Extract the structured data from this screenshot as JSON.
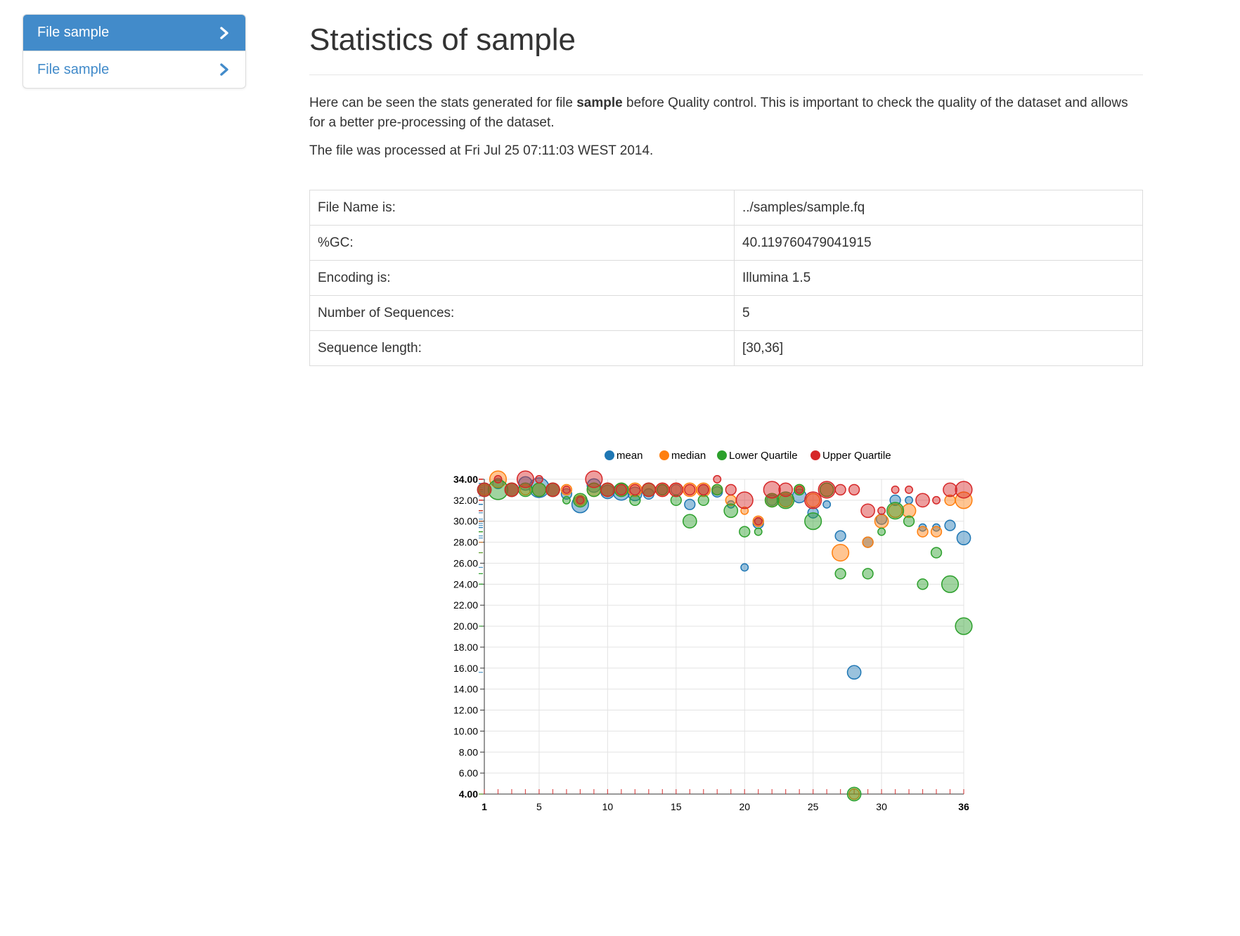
{
  "sidebar": {
    "items": [
      {
        "label": "File sample",
        "active": true
      },
      {
        "label": "File sample",
        "active": false
      }
    ]
  },
  "page": {
    "title": "Statistics of sample",
    "intro_before": "Here can be seen the stats generated for file ",
    "intro_bold": "sample",
    "intro_after": " before Quality control. This is important to check the quality of the dataset and allows for a better pre-processing of the dataset.",
    "processed": "The file was processed at Fri Jul 25 07:11:03 WEST 2014."
  },
  "stats_table": {
    "rows": [
      {
        "key": "File Name is:",
        "value": "../samples/sample.fq"
      },
      {
        "key": "%GC:",
        "value": "40.119760479041915"
      },
      {
        "key": "Encoding is:",
        "value": "Illumina 1.5"
      },
      {
        "key": "Number of Sequences:",
        "value": "5"
      },
      {
        "key": "Sequence length:",
        "value": "[30,36]"
      }
    ]
  },
  "colors": {
    "accent": "#428bca",
    "mean": "#1f77b4",
    "median": "#ff7f0e",
    "lower": "#2ca02c",
    "upper": "#d62728"
  },
  "chart_data": {
    "type": "scatter",
    "title": "",
    "xlabel": "",
    "ylabel": "",
    "xlim": [
      1,
      36
    ],
    "ylim": [
      4,
      34
    ],
    "x_ticks": [
      "1",
      "5",
      "10",
      "15",
      "20",
      "25",
      "30",
      "36"
    ],
    "y_ticks": [
      "4.00",
      "6.00",
      "8.00",
      "10.00",
      "12.00",
      "14.00",
      "16.00",
      "18.00",
      "20.00",
      "22.00",
      "24.00",
      "26.00",
      "28.00",
      "30.00",
      "32.00",
      "34.00"
    ],
    "grid": true,
    "legend_position": "top-right",
    "series": [
      {
        "name": "mean",
        "color": "#1f77b4",
        "points": [
          {
            "x": 1,
            "y": 33,
            "size": 3
          },
          {
            "x": 2,
            "y": 33.6,
            "size": 2
          },
          {
            "x": 3,
            "y": 33,
            "size": 3
          },
          {
            "x": 4,
            "y": 33.6,
            "size": 3
          },
          {
            "x": 5,
            "y": 33.2,
            "size": 5
          },
          {
            "x": 6,
            "y": 33,
            "size": 3
          },
          {
            "x": 7,
            "y": 32.6,
            "size": 2
          },
          {
            "x": 8,
            "y": 31.6,
            "size": 4
          },
          {
            "x": 9,
            "y": 33.4,
            "size": 3
          },
          {
            "x": 10,
            "y": 32.8,
            "size": 3
          },
          {
            "x": 11,
            "y": 32.8,
            "size": 4
          },
          {
            "x": 12,
            "y": 32.6,
            "size": 3
          },
          {
            "x": 13,
            "y": 32.6,
            "size": 2
          },
          {
            "x": 14,
            "y": 33,
            "size": 2
          },
          {
            "x": 15,
            "y": 33,
            "size": 2
          },
          {
            "x": 16,
            "y": 31.6,
            "size": 2
          },
          {
            "x": 17,
            "y": 33,
            "size": 2
          },
          {
            "x": 18,
            "y": 32.8,
            "size": 2
          },
          {
            "x": 19,
            "y": 31.6,
            "size": 1
          },
          {
            "x": 20,
            "y": 25.6,
            "size": 1
          },
          {
            "x": 21,
            "y": 29.8,
            "size": 2
          },
          {
            "x": 22,
            "y": 32,
            "size": 2
          },
          {
            "x": 23,
            "y": 32,
            "size": 3
          },
          {
            "x": 24,
            "y": 32.4,
            "size": 3
          },
          {
            "x": 25,
            "y": 30.8,
            "size": 2
          },
          {
            "x": 26,
            "y": 31.6,
            "size": 1
          },
          {
            "x": 27,
            "y": 28.6,
            "size": 2
          },
          {
            "x": 28,
            "y": 15.6,
            "size": 3
          },
          {
            "x": 29,
            "y": 28,
            "size": 2
          },
          {
            "x": 30,
            "y": 30.2,
            "size": 2
          },
          {
            "x": 31,
            "y": 32,
            "size": 2
          },
          {
            "x": 32,
            "y": 32,
            "size": 1
          },
          {
            "x": 33,
            "y": 29.4,
            "size": 1
          },
          {
            "x": 34,
            "y": 29.4,
            "size": 1
          },
          {
            "x": 35,
            "y": 29.6,
            "size": 2
          },
          {
            "x": 36,
            "y": 28.4,
            "size": 3
          }
        ]
      },
      {
        "name": "median",
        "color": "#ff7f0e",
        "points": [
          {
            "x": 1,
            "y": 33,
            "size": 2
          },
          {
            "x": 2,
            "y": 34,
            "size": 4
          },
          {
            "x": 3,
            "y": 33,
            "size": 3
          },
          {
            "x": 4,
            "y": 33,
            "size": 2
          },
          {
            "x": 5,
            "y": 33,
            "size": 3
          },
          {
            "x": 6,
            "y": 33,
            "size": 3
          },
          {
            "x": 7,
            "y": 33,
            "size": 2
          },
          {
            "x": 8,
            "y": 32,
            "size": 2
          },
          {
            "x": 9,
            "y": 33,
            "size": 3
          },
          {
            "x": 10,
            "y": 33,
            "size": 3
          },
          {
            "x": 11,
            "y": 33,
            "size": 3
          },
          {
            "x": 12,
            "y": 33,
            "size": 3
          },
          {
            "x": 13,
            "y": 33,
            "size": 3
          },
          {
            "x": 14,
            "y": 33,
            "size": 3
          },
          {
            "x": 15,
            "y": 33,
            "size": 3
          },
          {
            "x": 16,
            "y": 33,
            "size": 3
          },
          {
            "x": 17,
            "y": 33,
            "size": 3
          },
          {
            "x": 18,
            "y": 33,
            "size": 2
          },
          {
            "x": 19,
            "y": 32,
            "size": 2
          },
          {
            "x": 20,
            "y": 31,
            "size": 1
          },
          {
            "x": 21,
            "y": 30,
            "size": 2
          },
          {
            "x": 22,
            "y": 32,
            "size": 3
          },
          {
            "x": 23,
            "y": 32,
            "size": 3
          },
          {
            "x": 24,
            "y": 33,
            "size": 2
          },
          {
            "x": 25,
            "y": 32,
            "size": 3
          },
          {
            "x": 26,
            "y": 33,
            "size": 3
          },
          {
            "x": 27,
            "y": 27,
            "size": 4
          },
          {
            "x": 28,
            "y": 4,
            "size": 2
          },
          {
            "x": 29,
            "y": 28,
            "size": 2
          },
          {
            "x": 30,
            "y": 30,
            "size": 3
          },
          {
            "x": 31,
            "y": 31,
            "size": 3
          },
          {
            "x": 32,
            "y": 31,
            "size": 3
          },
          {
            "x": 33,
            "y": 29,
            "size": 2
          },
          {
            "x": 34,
            "y": 29,
            "size": 2
          },
          {
            "x": 35,
            "y": 32,
            "size": 2
          },
          {
            "x": 36,
            "y": 32,
            "size": 4
          }
        ]
      },
      {
        "name": "Lower Quartile",
        "color": "#2ca02c",
        "points": [
          {
            "x": 1,
            "y": 33,
            "size": 3
          },
          {
            "x": 2,
            "y": 33,
            "size": 5
          },
          {
            "x": 3,
            "y": 33,
            "size": 3
          },
          {
            "x": 4,
            "y": 33,
            "size": 3
          },
          {
            "x": 5,
            "y": 33,
            "size": 3
          },
          {
            "x": 6,
            "y": 33,
            "size": 3
          },
          {
            "x": 7,
            "y": 32,
            "size": 1
          },
          {
            "x": 8,
            "y": 32,
            "size": 3
          },
          {
            "x": 9,
            "y": 33,
            "size": 3
          },
          {
            "x": 10,
            "y": 33,
            "size": 3
          },
          {
            "x": 11,
            "y": 33,
            "size": 3
          },
          {
            "x": 12,
            "y": 32,
            "size": 2
          },
          {
            "x": 13,
            "y": 33,
            "size": 3
          },
          {
            "x": 14,
            "y": 33,
            "size": 2
          },
          {
            "x": 15,
            "y": 32,
            "size": 2
          },
          {
            "x": 16,
            "y": 30,
            "size": 3
          },
          {
            "x": 17,
            "y": 32,
            "size": 2
          },
          {
            "x": 18,
            "y": 33,
            "size": 2
          },
          {
            "x": 19,
            "y": 31,
            "size": 3
          },
          {
            "x": 20,
            "y": 29,
            "size": 2
          },
          {
            "x": 21,
            "y": 29,
            "size": 1
          },
          {
            "x": 22,
            "y": 32,
            "size": 3
          },
          {
            "x": 23,
            "y": 32,
            "size": 4
          },
          {
            "x": 24,
            "y": 33,
            "size": 2
          },
          {
            "x": 25,
            "y": 30,
            "size": 4
          },
          {
            "x": 26,
            "y": 33,
            "size": 3
          },
          {
            "x": 27,
            "y": 25,
            "size": 2
          },
          {
            "x": 28,
            "y": 4,
            "size": 3
          },
          {
            "x": 29,
            "y": 25,
            "size": 2
          },
          {
            "x": 30,
            "y": 29,
            "size": 1
          },
          {
            "x": 31,
            "y": 31,
            "size": 4
          },
          {
            "x": 32,
            "y": 30,
            "size": 2
          },
          {
            "x": 33,
            "y": 24,
            "size": 2
          },
          {
            "x": 34,
            "y": 27,
            "size": 2
          },
          {
            "x": 35,
            "y": 24,
            "size": 4
          },
          {
            "x": 36,
            "y": 20,
            "size": 4
          }
        ]
      },
      {
        "name": "Upper Quartile",
        "color": "#d62728",
        "points": [
          {
            "x": 1,
            "y": 33,
            "size": 3
          },
          {
            "x": 2,
            "y": 34,
            "size": 1
          },
          {
            "x": 3,
            "y": 33,
            "size": 3
          },
          {
            "x": 4,
            "y": 34,
            "size": 4
          },
          {
            "x": 5,
            "y": 34,
            "size": 1
          },
          {
            "x": 6,
            "y": 33,
            "size": 3
          },
          {
            "x": 7,
            "y": 33,
            "size": 1
          },
          {
            "x": 8,
            "y": 32,
            "size": 1
          },
          {
            "x": 9,
            "y": 34,
            "size": 4
          },
          {
            "x": 10,
            "y": 33,
            "size": 3
          },
          {
            "x": 11,
            "y": 33,
            "size": 2
          },
          {
            "x": 12,
            "y": 33,
            "size": 2
          },
          {
            "x": 13,
            "y": 33,
            "size": 3
          },
          {
            "x": 14,
            "y": 33,
            "size": 3
          },
          {
            "x": 15,
            "y": 33,
            "size": 3
          },
          {
            "x": 16,
            "y": 33,
            "size": 2
          },
          {
            "x": 17,
            "y": 33,
            "size": 2
          },
          {
            "x": 18,
            "y": 34,
            "size": 1
          },
          {
            "x": 19,
            "y": 33,
            "size": 2
          },
          {
            "x": 20,
            "y": 32,
            "size": 4
          },
          {
            "x": 21,
            "y": 30,
            "size": 1
          },
          {
            "x": 22,
            "y": 33,
            "size": 4
          },
          {
            "x": 23,
            "y": 33,
            "size": 3
          },
          {
            "x": 24,
            "y": 33,
            "size": 1
          },
          {
            "x": 25,
            "y": 32,
            "size": 4
          },
          {
            "x": 26,
            "y": 33,
            "size": 4
          },
          {
            "x": 27,
            "y": 33,
            "size": 2
          },
          {
            "x": 28,
            "y": 33,
            "size": 2
          },
          {
            "x": 29,
            "y": 31,
            "size": 3
          },
          {
            "x": 30,
            "y": 31,
            "size": 1
          },
          {
            "x": 31,
            "y": 33,
            "size": 1
          },
          {
            "x": 32,
            "y": 33,
            "size": 1
          },
          {
            "x": 33,
            "y": 32,
            "size": 3
          },
          {
            "x": 34,
            "y": 32,
            "size": 1
          },
          {
            "x": 35,
            "y": 33,
            "size": 3
          },
          {
            "x": 36,
            "y": 33,
            "size": 4
          }
        ]
      }
    ]
  }
}
